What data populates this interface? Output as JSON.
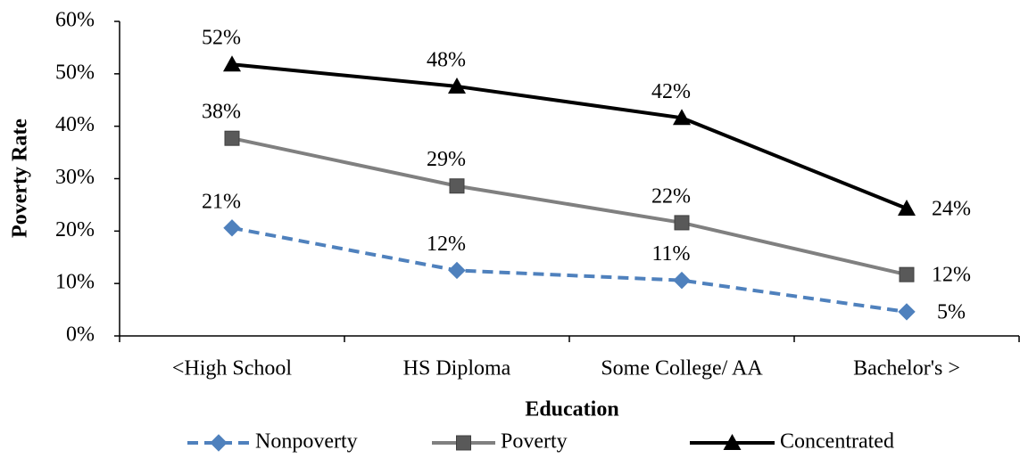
{
  "chart_data": {
    "type": "line",
    "x_label": "Education",
    "y_label": "Poverty Rate",
    "categories": [
      "<High School",
      "HS Diploma",
      "Some College/ AA",
      "Bachelor's >"
    ],
    "series": [
      {
        "name": "Nonpoverty",
        "color": "#4f81bd",
        "marker": "diamond",
        "dashed": true,
        "values": [
          20.6,
          12.5,
          10.6,
          4.6
        ],
        "value_labels": [
          "21%",
          "12%",
          "11%",
          "5%"
        ]
      },
      {
        "name": "Poverty",
        "color": "#808080",
        "marker_color": "#595959",
        "marker": "square",
        "dashed": false,
        "values": [
          37.7,
          28.6,
          21.6,
          11.7
        ],
        "value_labels": [
          "38%",
          "29%",
          "22%",
          "12%"
        ]
      },
      {
        "name": "Concentrated",
        "color": "#000000",
        "marker": "triangle",
        "dashed": false,
        "values": [
          51.8,
          47.6,
          41.6,
          24.3
        ],
        "value_labels": [
          "52%",
          "48%",
          "42%",
          "24%"
        ]
      }
    ],
    "ylim": [
      0,
      60
    ],
    "yticks": [
      {
        "value": 0,
        "label": "0%"
      },
      {
        "value": 10,
        "label": "10%"
      },
      {
        "value": 20,
        "label": "20%"
      },
      {
        "value": 30,
        "label": "30%"
      },
      {
        "value": 40,
        "label": "40%"
      },
      {
        "value": 50,
        "label": "50%"
      },
      {
        "value": 60,
        "label": "60%"
      }
    ],
    "grid": false,
    "legend": "bottom"
  }
}
